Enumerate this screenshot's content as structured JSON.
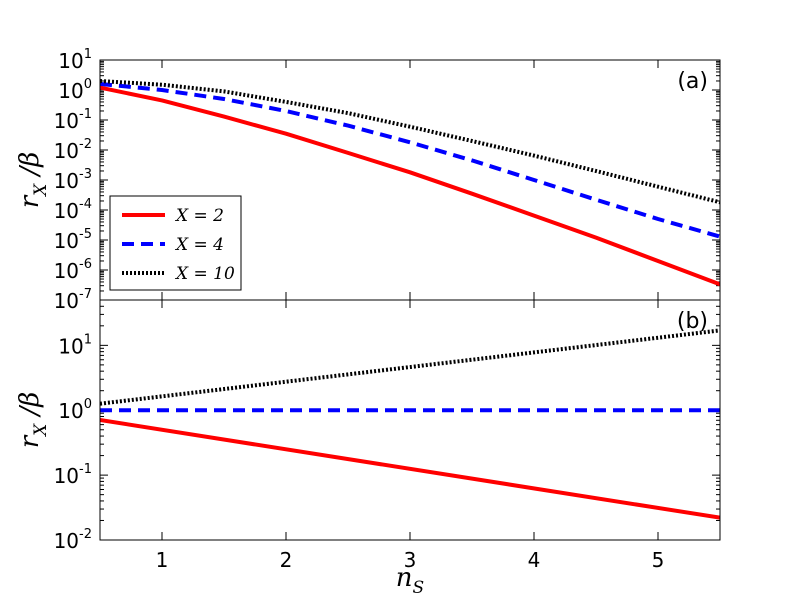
{
  "chart_data": [
    {
      "type": "line",
      "panel_label": "(a)",
      "ylabel": "r_X / β",
      "ylabel_main": "r",
      "ylabel_sub": "X",
      "ylabel_tail": " /β",
      "xlim": [
        0.5,
        5.5
      ],
      "ylim": [
        1e-07,
        10
      ],
      "yscale": "log",
      "y_ticks": [
        {
          "base": "10",
          "exp": "-7",
          "value": 1e-07
        },
        {
          "base": "10",
          "exp": "-6",
          "value": 1e-06
        },
        {
          "base": "10",
          "exp": "-5",
          "value": 1e-05
        },
        {
          "base": "10",
          "exp": "-4",
          "value": 0.0001
        },
        {
          "base": "10",
          "exp": "-3",
          "value": 0.001
        },
        {
          "base": "10",
          "exp": "-2",
          "value": 0.01
        },
        {
          "base": "10",
          "exp": "-1",
          "value": 0.1
        },
        {
          "base": "10",
          "exp": "0",
          "value": 1
        },
        {
          "base": "10",
          "exp": "1",
          "value": 10
        }
      ],
      "legend": {
        "placement": "lower-left"
      },
      "series": [
        {
          "name": "X = 2",
          "color": "#ff0000",
          "style": "solid",
          "x": [
            0.5,
            1.0,
            1.5,
            2.0,
            2.5,
            3.0,
            3.5,
            4.0,
            4.5,
            5.0,
            5.5
          ],
          "y": [
            1.2,
            0.45,
            0.13,
            0.035,
            0.008,
            0.0018,
            0.00035,
            6.5e-05,
            1.2e-05,
            2e-06,
            3.3e-07
          ]
        },
        {
          "name": "X = 4",
          "color": "#0000ff",
          "style": "dashed",
          "x": [
            0.5,
            1.0,
            1.5,
            2.0,
            2.5,
            3.0,
            3.5,
            4.0,
            4.5,
            5.0,
            5.5
          ],
          "y": [
            1.6,
            1.0,
            0.5,
            0.2,
            0.065,
            0.018,
            0.0045,
            0.001,
            0.00022,
            5e-05,
            1.3e-05
          ]
        },
        {
          "name": "X = 10",
          "color": "#000000",
          "style": "dotted",
          "x": [
            0.5,
            1.0,
            1.5,
            2.0,
            2.5,
            3.0,
            3.5,
            4.0,
            4.5,
            5.0,
            5.5
          ],
          "y": [
            2.0,
            1.5,
            0.9,
            0.4,
            0.17,
            0.06,
            0.02,
            0.0065,
            0.002,
            0.0006,
            0.00018
          ]
        }
      ]
    },
    {
      "type": "line",
      "panel_label": "(b)",
      "ylabel": "r_X / β",
      "ylabel_main": "r",
      "ylabel_sub": "X",
      "ylabel_tail": " /β",
      "xlabel": "n_S",
      "xlabel_main": "n",
      "xlabel_sub": "S",
      "xlim": [
        0.5,
        5.5
      ],
      "ylim": [
        0.01,
        50
      ],
      "yscale": "log",
      "x_ticks": [
        "1",
        "2",
        "3",
        "4",
        "5"
      ],
      "y_ticks": [
        {
          "base": "10",
          "exp": "-2",
          "value": 0.01
        },
        {
          "base": "10",
          "exp": "-1",
          "value": 0.1
        },
        {
          "base": "10",
          "exp": "0",
          "value": 1
        },
        {
          "base": "10",
          "exp": "1",
          "value": 10
        }
      ],
      "series": [
        {
          "name": "X = 2",
          "color": "#ff0000",
          "style": "solid",
          "x": [
            0.5,
            5.5
          ],
          "y": [
            0.707,
            0.0221
          ]
        },
        {
          "name": "X = 4",
          "color": "#0000ff",
          "style": "dashed",
          "x": [
            0.5,
            5.5
          ],
          "y": [
            1.0,
            1.0
          ]
        },
        {
          "name": "X = 10",
          "color": "#000000",
          "style": "dotted",
          "x": [
            0.5,
            5.5
          ],
          "y": [
            1.26,
            17.0
          ]
        }
      ]
    }
  ]
}
